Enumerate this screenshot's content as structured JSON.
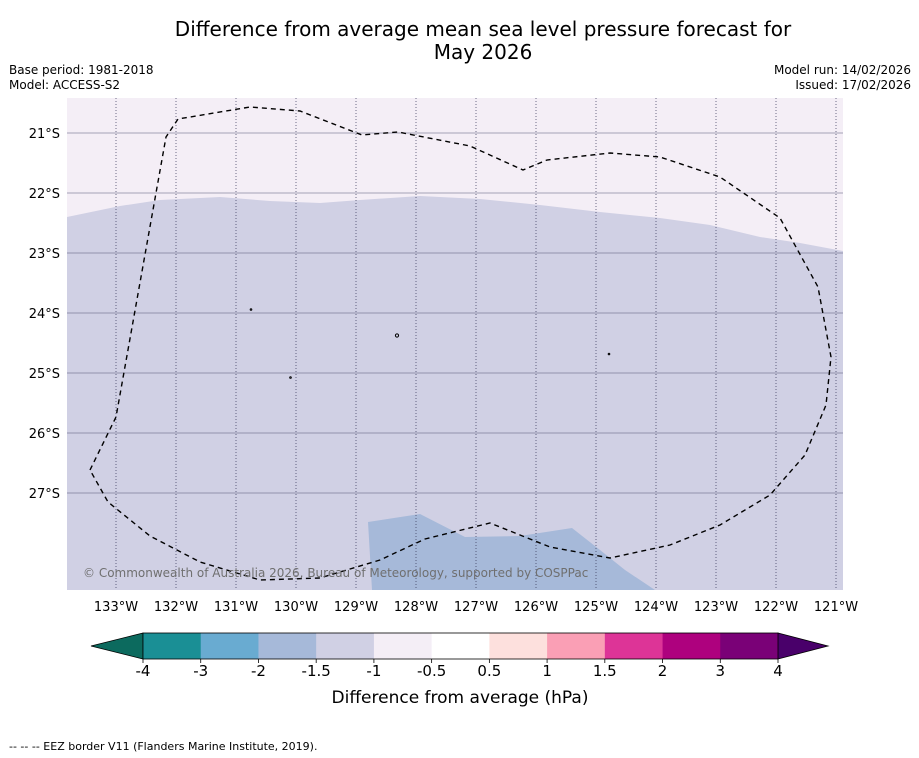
{
  "title": {
    "line1": "Difference from average mean sea level pressure forecast for",
    "line2": "May 2026"
  },
  "meta": {
    "base_period": "Base period: 1981-2018",
    "model": "Model: ACCESS-S2",
    "model_run": "Model run: 14/02/2026",
    "issued": "Issued: 17/02/2026"
  },
  "map": {
    "lon_labels": [
      "133°W",
      "132°W",
      "131°W",
      "130°W",
      "129°W",
      "128°W",
      "127°W",
      "126°W",
      "125°W",
      "124°W",
      "123°W",
      "122°W",
      "121°W"
    ],
    "lat_labels": [
      "21°S",
      "22°S",
      "23°S",
      "24°S",
      "25°S",
      "26°S",
      "27°S"
    ],
    "copyright": "© Commonwealth of Australia 2026, Bureau of Meteorology, supported by COSPPac",
    "region_colors": {
      "neg_0_5_to_neg_1": "#f4eef6",
      "neg_1_to_neg_1_5": "#d0d0e4",
      "neg_1_5_to_neg_2": "#a6b9d9"
    }
  },
  "colorbar": {
    "title": "Difference from average (hPa)",
    "ticks": [
      "-4",
      "-3",
      "-2",
      "-1.5",
      "-1",
      "-0.5",
      "0.5",
      "1",
      "1.5",
      "2",
      "3",
      "4"
    ],
    "colors": [
      "#1a8f95",
      "#69abd1",
      "#a6b9d9",
      "#d0d0e4",
      "#f4eef6",
      "#ffffff",
      "#fde0dd",
      "#fa9fb5",
      "#dd3497",
      "#ae017e",
      "#7a0177"
    ],
    "low_extend_color": "#0c6a5e",
    "high_extend_color": "#49006a"
  },
  "footer": {
    "legend": "--  --  -- EEZ border V11 (Flanders Marine Institute, 2019)."
  }
}
